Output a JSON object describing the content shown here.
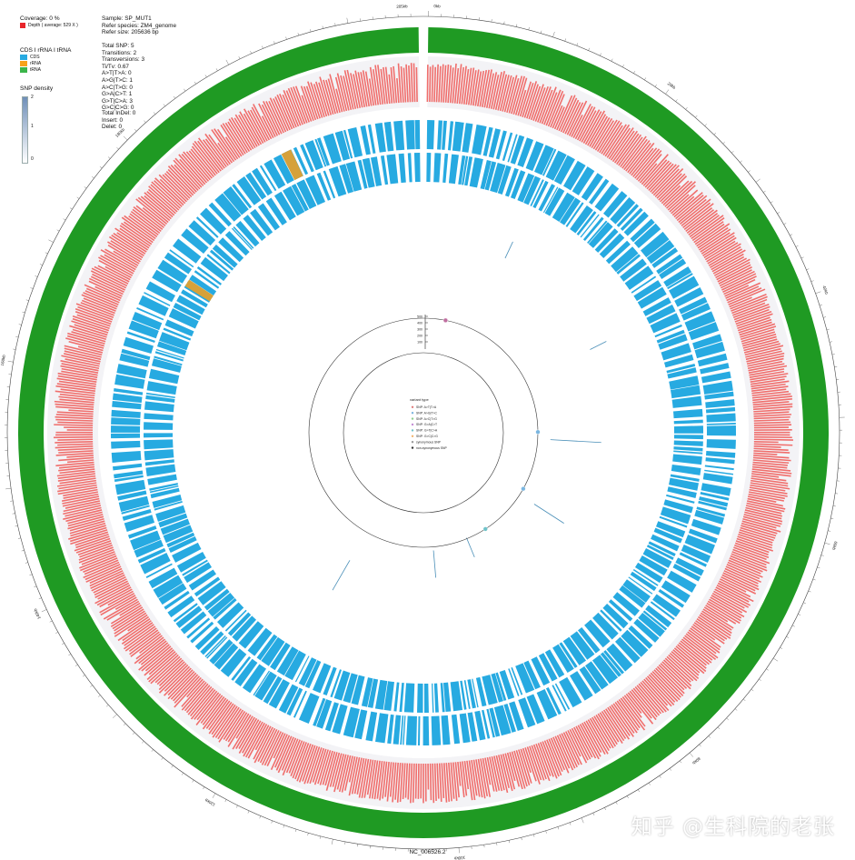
{
  "legend": {
    "coverage_line": "Coverage: 0 %",
    "depth_label": "Depth ( average: 529 X )",
    "depth_color": "#e8252a",
    "feature_title": "CDS I rRNA I tRNA",
    "features": [
      {
        "label": "CDS",
        "color": "#27aae1"
      },
      {
        "label": "rRNA",
        "color": "#f7a21b"
      },
      {
        "label": "tRNA",
        "color": "#3bb54a"
      }
    ],
    "density_title": "SNP density",
    "density_ticks": [
      "2",
      "1",
      "0"
    ],
    "density_color_high": "#6f8fb8",
    "density_color_low": "#ffffff"
  },
  "sample_info": {
    "sample": "Sample: SP_MUT1",
    "species": "Refer species: ZM4_genome",
    "size": "Refer size: 205636 bp"
  },
  "snp_stats": [
    "Total SNP: 5",
    "Transitions: 2",
    "Transversions: 3",
    "Ti/Tv: 0.67",
    "A>T|T>A: 0",
    "A>G|T>C: 1",
    "A>C|T>G: 0",
    "G>A|C>T: 1",
    "G>T|C>A: 3",
    "G>C|C>G: 0"
  ],
  "indel_stats": [
    "Total InDel: 0",
    "Insert: 0",
    "Delet: 0"
  ],
  "inner_legend": {
    "title": "variant type",
    "items": [
      {
        "label": "SNP: A>T|T>A",
        "color": "#e07b7b"
      },
      {
        "label": "SNP: A>G|T>C",
        "color": "#7bb6e0"
      },
      {
        "label": "SNP: A>C|T>G",
        "color": "#8fd08f"
      },
      {
        "label": "SNP: G>A|C>T",
        "color": "#c58fd6"
      },
      {
        "label": "SNP: G>T|C>A",
        "color": "#6fc3c9"
      },
      {
        "label": "SNP: G>C|C>G",
        "color": "#f2b36b"
      },
      {
        "label": "synonymous SNP",
        "color": "#999999"
      },
      {
        "label": "non-synonymous SNP",
        "color": "#333333"
      }
    ]
  },
  "scale_ticks": [
    "500",
    "400",
    "300",
    "200",
    "100"
  ],
  "outer_tick_labels": [
    "205kb",
    "0kb",
    "20kb",
    "40kb",
    "60kb",
    "80kb",
    "100kb",
    "120kb",
    "140kb",
    "160kb",
    "180kb"
  ],
  "genome_id": "NC_006526.2",
  "watermark": "知乎 @生科院的老张",
  "colors": {
    "genome_ring": "#1f9a23",
    "depth": "#f06e6c",
    "cds": "#27aae1",
    "rrna": "#d6a13a",
    "snp_line": "#4a8fb8"
  },
  "snp_markers": [
    {
      "position_kb": 6,
      "color": "#c06ea0"
    },
    {
      "position_kb": 51,
      "color": "#7bb6e0"
    },
    {
      "position_kb": 68,
      "color": "#7bb6e0"
    },
    {
      "position_kb": 84,
      "color": "#6fc3c9"
    }
  ]
}
